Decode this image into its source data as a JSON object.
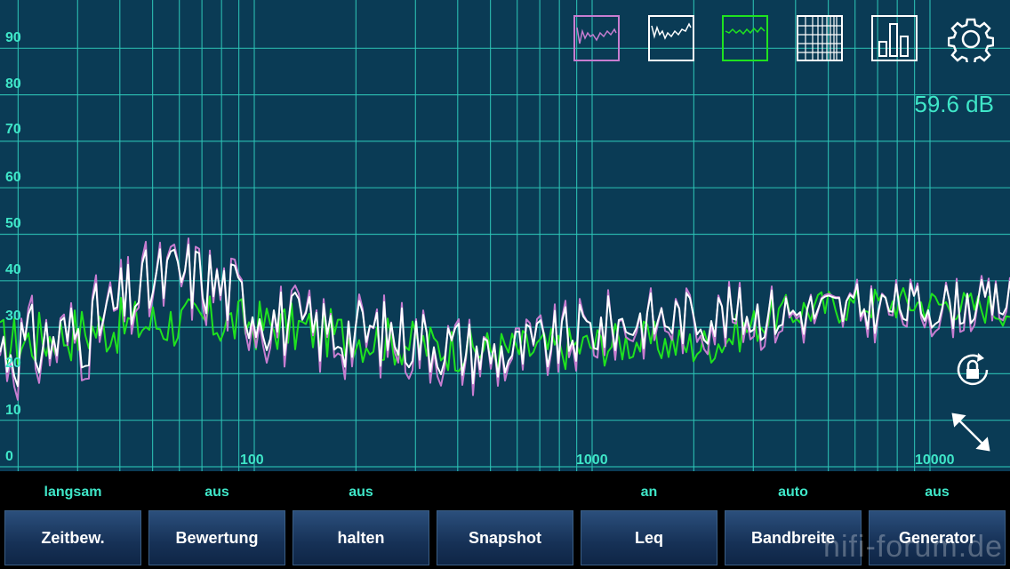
{
  "y_labels": [
    "90",
    "80",
    "70",
    "60",
    "50",
    "40",
    "30",
    "20",
    "10",
    "0"
  ],
  "x_labels": [
    "100",
    "1000",
    "10000"
  ],
  "view_buttons": [
    {
      "name": "purple-spectrum-view-button",
      "color": "#c77dd0",
      "icon": "spectrum-trace-icon"
    },
    {
      "name": "white-spectrum-view-button",
      "color": "#ffffff",
      "icon": "spectrum-trace-icon"
    },
    {
      "name": "green-spectrum-view-button",
      "color": "#1fe21f",
      "icon": "spectrum-trace-icon"
    },
    {
      "name": "waterfall-view-button",
      "color": "#ffffff",
      "icon": "grid-icon"
    },
    {
      "name": "bar-view-button",
      "color": "#ffffff",
      "icon": "bar-chart-icon"
    }
  ],
  "settings_icon": "gear-icon",
  "level_readout": "59.6 dB",
  "side_icons": [
    "rotation-lock-icon",
    "fullscreen-icon"
  ],
  "controls": [
    {
      "status": "langsam",
      "label": "Zeitbew."
    },
    {
      "status": "aus",
      "label": "Bewertung"
    },
    {
      "status": "aus",
      "label": "halten"
    },
    {
      "status": "",
      "label": "Snapshot"
    },
    {
      "status": "an",
      "label": "Leq"
    },
    {
      "status": "auto",
      "label": "Bandbreite"
    },
    {
      "status": "aus",
      "label": "Generator"
    }
  ],
  "watermark": "hifi-forum.de",
  "colors": {
    "background": "#0a3b55",
    "grid": "#2ec7b8",
    "label": "#3fe6c8",
    "trace_purple": "#c77dd0",
    "trace_white": "#ffffff",
    "trace_green": "#1fe21f"
  }
}
